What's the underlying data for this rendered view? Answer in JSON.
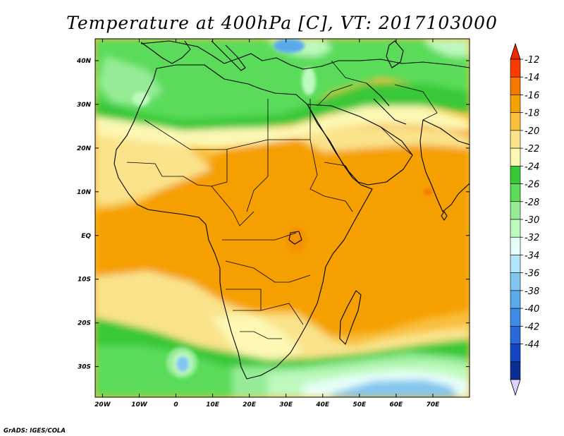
{
  "title": "Temperature at 400hPa [C], VT: 2017103000",
  "credit": "GrADS: IGES/COLA",
  "map": {
    "lon_range": [
      -22,
      80
    ],
    "lat_range": [
      -37,
      45
    ],
    "x_ticks": [
      {
        "value": -20,
        "label": "20W"
      },
      {
        "value": -10,
        "label": "10W"
      },
      {
        "value": 0,
        "label": "0"
      },
      {
        "value": 10,
        "label": "10E"
      },
      {
        "value": 20,
        "label": "20E"
      },
      {
        "value": 30,
        "label": "30E"
      },
      {
        "value": 40,
        "label": "40E"
      },
      {
        "value": 50,
        "label": "50E"
      },
      {
        "value": 60,
        "label": "60E"
      },
      {
        "value": 70,
        "label": "70E"
      }
    ],
    "y_ticks": [
      {
        "value": 40,
        "label": "40N"
      },
      {
        "value": 30,
        "label": "30N"
      },
      {
        "value": 20,
        "label": "20N"
      },
      {
        "value": 10,
        "label": "10N"
      },
      {
        "value": 0,
        "label": "EQ"
      },
      {
        "value": -10,
        "label": "10S"
      },
      {
        "value": -20,
        "label": "20S"
      },
      {
        "value": -30,
        "label": "30S"
      }
    ]
  },
  "colorbar": {
    "labels": [
      "-12",
      "-14",
      "-16",
      "-18",
      "-20",
      "-22",
      "-24",
      "-26",
      "-28",
      "-30",
      "-32",
      "-34",
      "-36",
      "-38",
      "-40",
      "-42",
      "-44"
    ],
    "colors": [
      "#fa3c00",
      "#f57800",
      "#f5a000",
      "#f8be3c",
      "#fae38b",
      "#fdf8b4",
      "#37c837",
      "#5adc5a",
      "#96ec96",
      "#bef9be",
      "#e6fff8",
      "#b2e6fa",
      "#82c6f0",
      "#5aaaeb",
      "#3c8ce8",
      "#2869dc",
      "#1446c3",
      "#0a2d96"
    ],
    "top_color": "#f02800",
    "bottom_color": "#dcd2fa"
  }
}
